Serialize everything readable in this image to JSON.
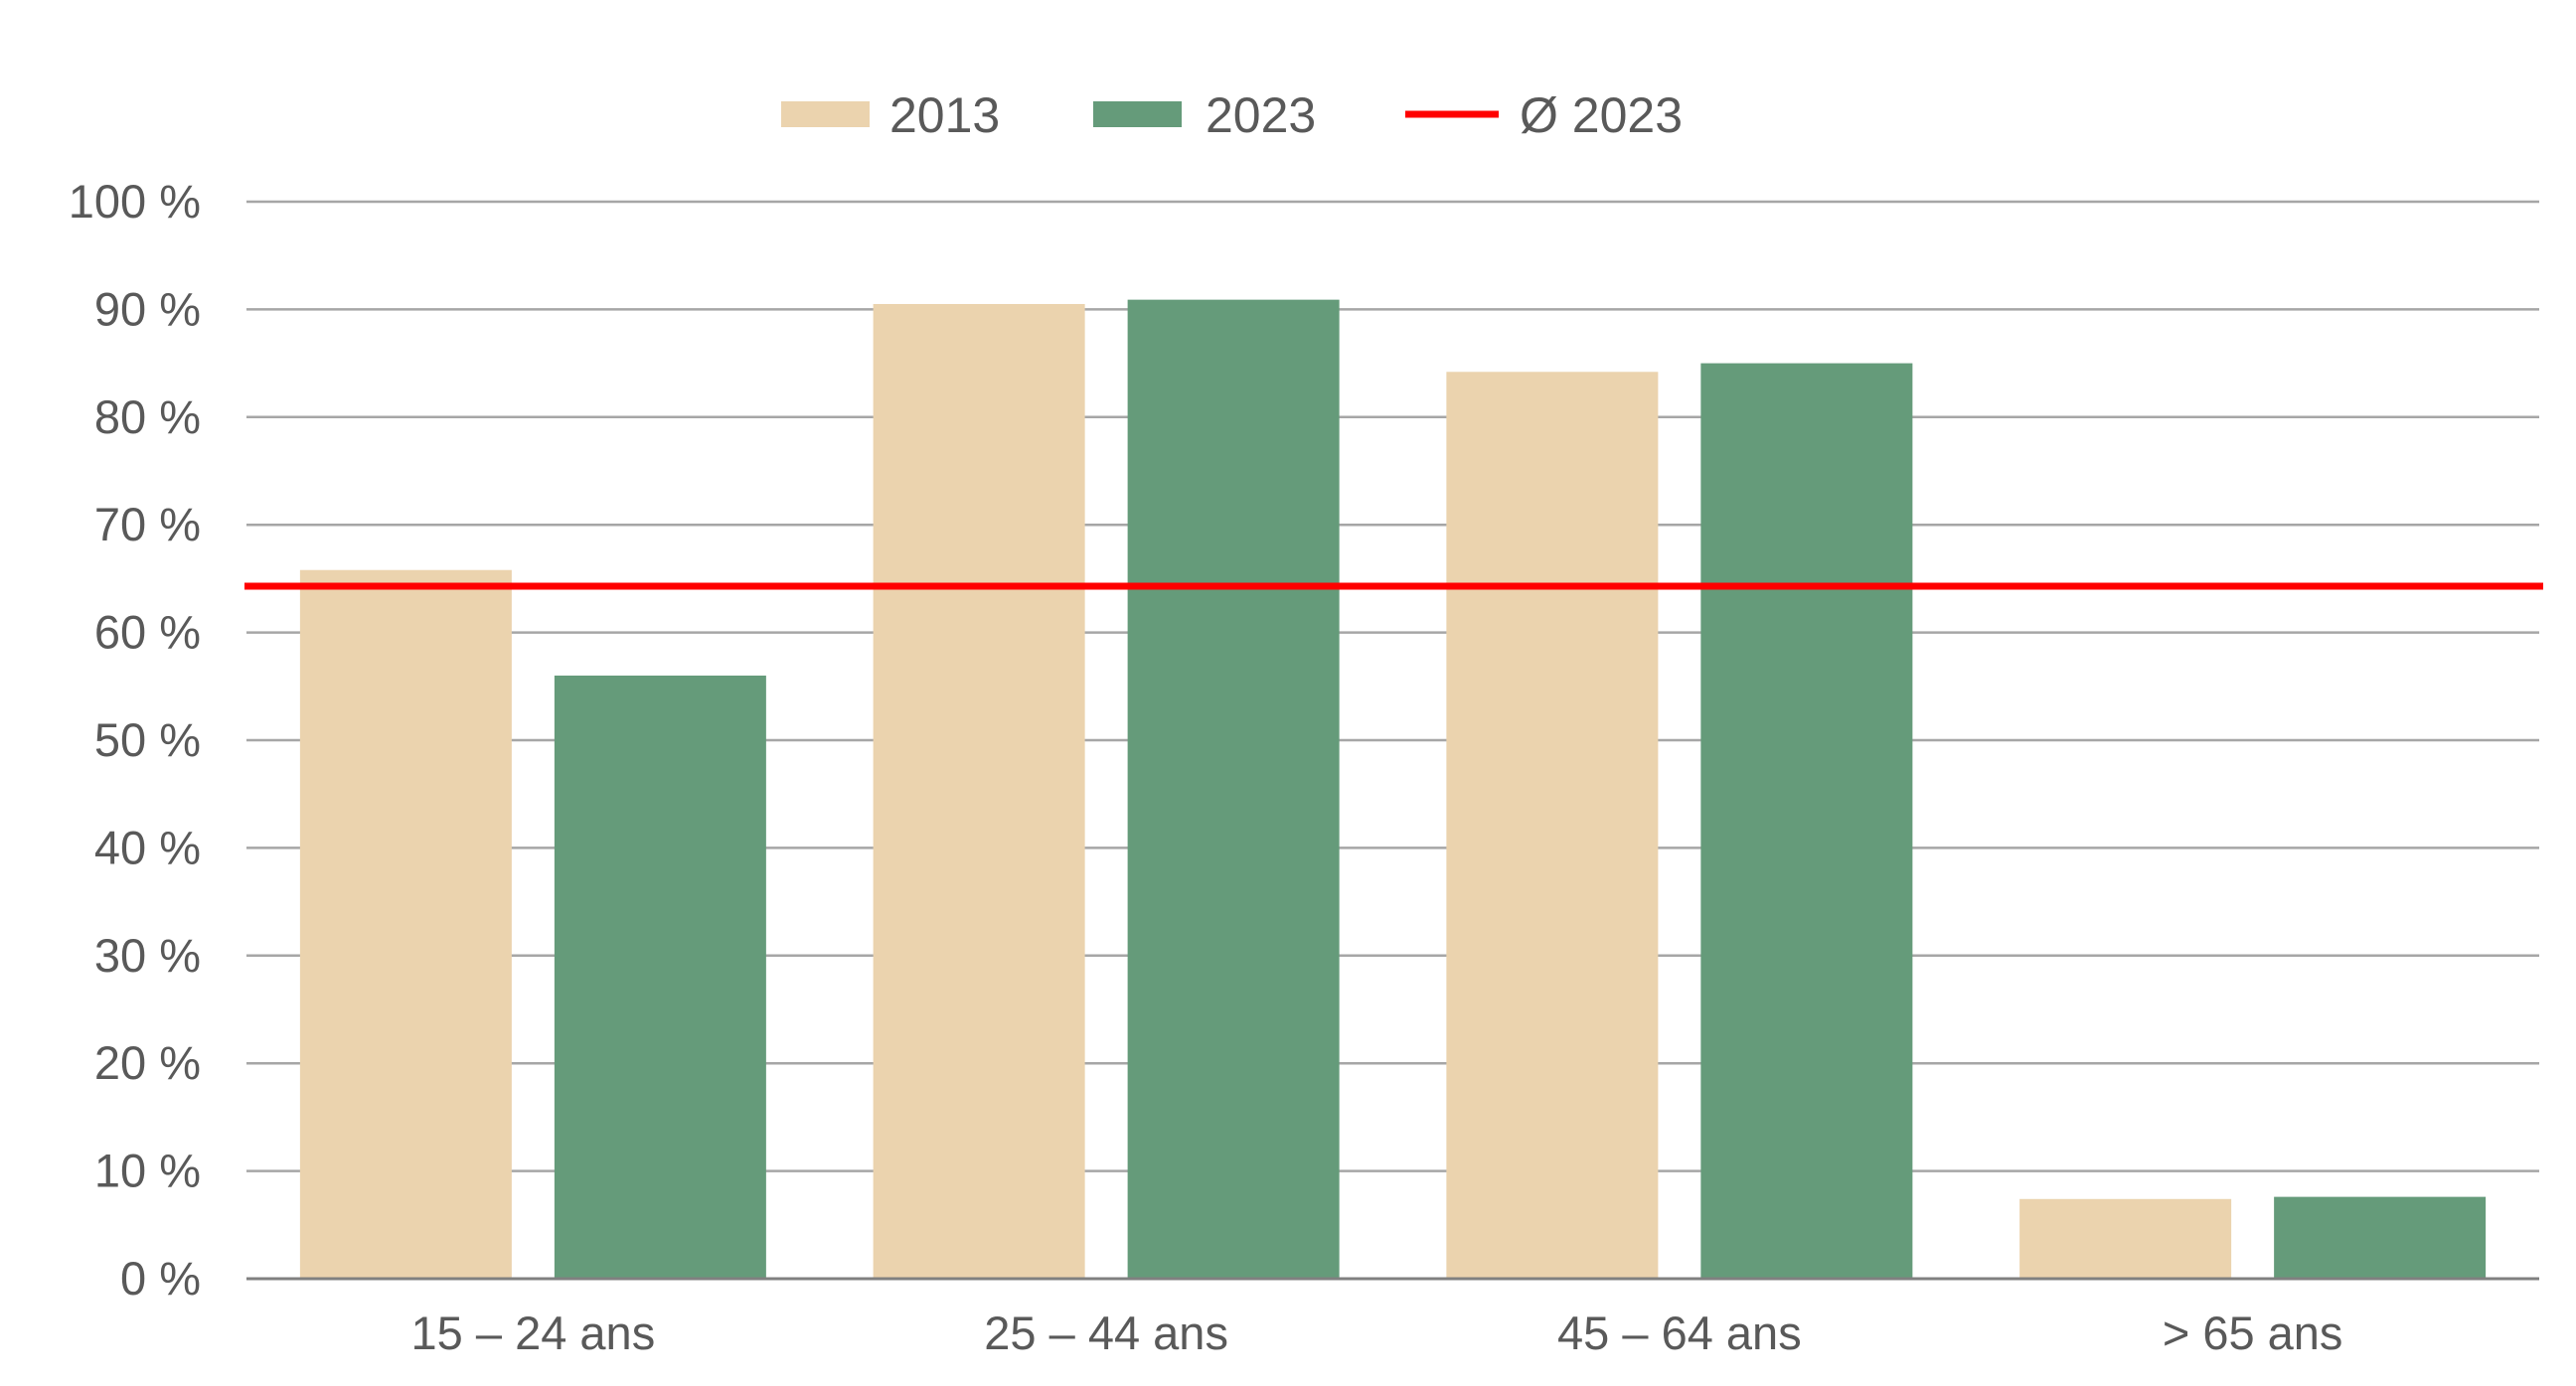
{
  "chart_data": {
    "type": "bar",
    "categories": [
      "15 – 24 ans",
      "25 – 44 ans",
      "45 – 64 ans",
      "> 65 ans"
    ],
    "series": [
      {
        "name": "2013",
        "values": [
          65.8,
          90.5,
          84.2,
          7.4
        ],
        "color": "#EBD3AE"
      },
      {
        "name": "2023",
        "values": [
          56.0,
          90.9,
          85.0,
          7.6
        ],
        "color": "#659B7A"
      }
    ],
    "reference_line": {
      "name": "Ø 2023",
      "value": 64.3,
      "color": "#FF0000"
    },
    "y_ticks": [
      {
        "value": 0,
        "label": "0 %"
      },
      {
        "value": 10,
        "label": "10 %"
      },
      {
        "value": 20,
        "label": "20 %"
      },
      {
        "value": 30,
        "label": "30 %"
      },
      {
        "value": 40,
        "label": "40 %"
      },
      {
        "value": 50,
        "label": "50 %"
      },
      {
        "value": 60,
        "label": "60 %"
      },
      {
        "value": 70,
        "label": "70 %"
      },
      {
        "value": 80,
        "label": "80 %"
      },
      {
        "value": 90,
        "label": "90 %"
      },
      {
        "value": 100,
        "label": "100 %"
      }
    ],
    "ylim": [
      0,
      100
    ],
    "grid": true,
    "legend_position": "top-center",
    "title": "",
    "xlabel": "",
    "ylabel": ""
  },
  "colors": {
    "grid": "#A6A6A6",
    "axis": "#808080",
    "text": "#595959"
  }
}
